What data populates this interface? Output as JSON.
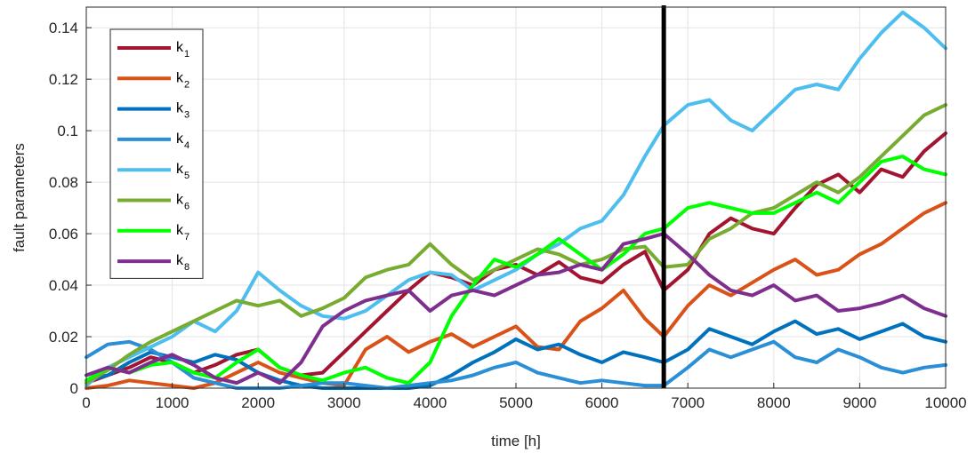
{
  "chart_data": {
    "type": "line",
    "title": "",
    "xlabel": "time [h]",
    "ylabel": "fault parameters",
    "xlim": [
      0,
      10000
    ],
    "ylim": [
      0,
      0.148
    ],
    "xticks": [
      0,
      1000,
      2000,
      3000,
      4000,
      5000,
      6000,
      7000,
      8000,
      9000,
      10000
    ],
    "xtick_labels": [
      "0",
      "1000",
      "2000",
      "3000",
      "4000",
      "5000",
      "6000",
      "7000",
      "8000",
      "9000",
      "10000"
    ],
    "yticks": [
      0,
      0.02,
      0.04,
      0.06,
      0.08,
      0.1,
      0.12,
      0.14
    ],
    "ytick_labels": [
      "0",
      "0.02",
      "0.04",
      "0.06",
      "0.08",
      "0.1",
      "0.12",
      "0.14"
    ],
    "grid": true,
    "legend_position": "top-left",
    "vertical_marker": {
      "x": 6720,
      "color": "#000000"
    },
    "x": [
      0,
      250,
      500,
      750,
      1000,
      1250,
      1500,
      1750,
      2000,
      2250,
      2500,
      2750,
      3000,
      3250,
      3500,
      3750,
      4000,
      4250,
      4500,
      4750,
      5000,
      5250,
      5500,
      5750,
      6000,
      6250,
      6500,
      6720,
      7000,
      7250,
      7500,
      7750,
      8000,
      8250,
      8500,
      8750,
      9000,
      9250,
      9500,
      9750,
      10000
    ],
    "series": [
      {
        "name": "k",
        "subscript": "1",
        "color": "#A2142F",
        "values": [
          0.002,
          0.005,
          0.008,
          0.012,
          0.01,
          0.006,
          0.009,
          0.013,
          0.015,
          0.008,
          0.005,
          0.006,
          0.014,
          0.022,
          0.03,
          0.038,
          0.045,
          0.043,
          0.04,
          0.046,
          0.048,
          0.044,
          0.049,
          0.043,
          0.041,
          0.048,
          0.053,
          0.038,
          0.046,
          0.06,
          0.066,
          0.062,
          0.06,
          0.07,
          0.079,
          0.083,
          0.076,
          0.085,
          0.082,
          0.092,
          0.099
        ]
      },
      {
        "name": "k",
        "subscript": "2",
        "color": "#D95319",
        "values": [
          0.0,
          0.001,
          0.003,
          0.002,
          0.001,
          0.0,
          0.002,
          0.006,
          0.01,
          0.006,
          0.004,
          0.002,
          0.001,
          0.015,
          0.02,
          0.014,
          0.018,
          0.021,
          0.016,
          0.02,
          0.024,
          0.016,
          0.015,
          0.026,
          0.031,
          0.038,
          0.027,
          0.02,
          0.032,
          0.04,
          0.036,
          0.041,
          0.046,
          0.05,
          0.044,
          0.046,
          0.052,
          0.056,
          0.062,
          0.068,
          0.072
        ]
      },
      {
        "name": "k",
        "subscript": "3",
        "color": "#0072BD",
        "values": [
          0.003,
          0.005,
          0.01,
          0.014,
          0.012,
          0.01,
          0.013,
          0.011,
          0.006,
          0.003,
          0.001,
          0.0,
          0.0,
          0.0,
          0.0,
          0.0,
          0.001,
          0.005,
          0.01,
          0.014,
          0.019,
          0.015,
          0.017,
          0.013,
          0.01,
          0.014,
          0.012,
          0.01,
          0.015,
          0.023,
          0.02,
          0.017,
          0.022,
          0.026,
          0.021,
          0.023,
          0.019,
          0.022,
          0.025,
          0.02,
          0.018
        ]
      },
      {
        "name": "k",
        "subscript": "4",
        "color": "#2A8FD6",
        "values": [
          0.012,
          0.017,
          0.018,
          0.015,
          0.01,
          0.004,
          0.002,
          0.0,
          0.0,
          0.0,
          0.001,
          0.002,
          0.002,
          0.001,
          0.0,
          0.001,
          0.002,
          0.003,
          0.005,
          0.008,
          0.01,
          0.006,
          0.004,
          0.002,
          0.003,
          0.002,
          0.001,
          0.001,
          0.008,
          0.015,
          0.012,
          0.015,
          0.018,
          0.012,
          0.01,
          0.015,
          0.012,
          0.008,
          0.006,
          0.008,
          0.009
        ]
      },
      {
        "name": "k",
        "subscript": "5",
        "color": "#4DBEEE",
        "values": [
          0.001,
          0.008,
          0.012,
          0.016,
          0.02,
          0.026,
          0.022,
          0.03,
          0.045,
          0.038,
          0.032,
          0.028,
          0.027,
          0.03,
          0.036,
          0.042,
          0.045,
          0.044,
          0.038,
          0.042,
          0.046,
          0.052,
          0.056,
          0.062,
          0.065,
          0.075,
          0.09,
          0.102,
          0.11,
          0.112,
          0.104,
          0.1,
          0.108,
          0.116,
          0.118,
          0.116,
          0.128,
          0.138,
          0.146,
          0.14,
          0.132
        ]
      },
      {
        "name": "k",
        "subscript": "6",
        "color": "#77AC30",
        "values": [
          0.002,
          0.007,
          0.013,
          0.018,
          0.022,
          0.026,
          0.03,
          0.034,
          0.032,
          0.034,
          0.028,
          0.031,
          0.035,
          0.043,
          0.046,
          0.048,
          0.056,
          0.048,
          0.042,
          0.046,
          0.05,
          0.054,
          0.052,
          0.048,
          0.05,
          0.054,
          0.055,
          0.047,
          0.048,
          0.058,
          0.062,
          0.068,
          0.07,
          0.075,
          0.08,
          0.076,
          0.082,
          0.09,
          0.098,
          0.106,
          0.11
        ]
      },
      {
        "name": "k",
        "subscript": "7",
        "color": "#00FF00",
        "values": [
          0.003,
          0.008,
          0.006,
          0.009,
          0.01,
          0.006,
          0.004,
          0.01,
          0.015,
          0.008,
          0.005,
          0.003,
          0.006,
          0.008,
          0.004,
          0.002,
          0.01,
          0.028,
          0.04,
          0.05,
          0.047,
          0.052,
          0.058,
          0.052,
          0.046,
          0.052,
          0.06,
          0.062,
          0.07,
          0.072,
          0.07,
          0.068,
          0.068,
          0.072,
          0.076,
          0.072,
          0.08,
          0.088,
          0.09,
          0.085,
          0.083
        ]
      },
      {
        "name": "k",
        "subscript": "8",
        "color": "#7E2F8E",
        "values": [
          0.005,
          0.008,
          0.006,
          0.01,
          0.013,
          0.009,
          0.004,
          0.002,
          0.006,
          0.002,
          0.01,
          0.024,
          0.03,
          0.034,
          0.036,
          0.038,
          0.03,
          0.036,
          0.038,
          0.036,
          0.04,
          0.044,
          0.045,
          0.048,
          0.046,
          0.056,
          0.058,
          0.06,
          0.052,
          0.044,
          0.038,
          0.036,
          0.04,
          0.034,
          0.036,
          0.03,
          0.031,
          0.033,
          0.036,
          0.031,
          0.028
        ]
      }
    ]
  }
}
